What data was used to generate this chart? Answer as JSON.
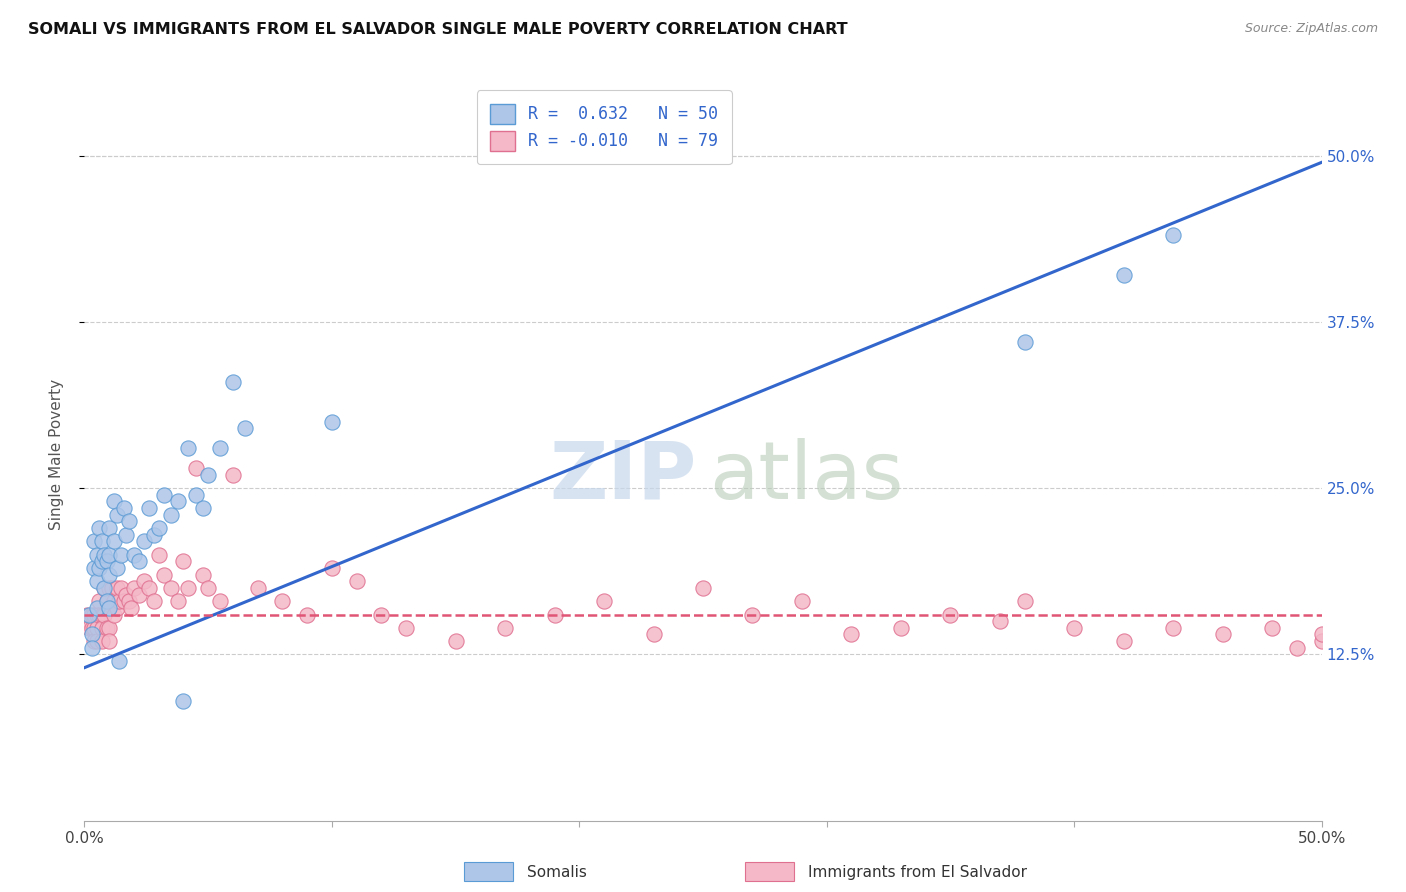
{
  "title": "SOMALI VS IMMIGRANTS FROM EL SALVADOR SINGLE MALE POVERTY CORRELATION CHART",
  "source": "Source: ZipAtlas.com",
  "ylabel": "Single Male Poverty",
  "yticks_labels": [
    "12.5%",
    "25.0%",
    "37.5%",
    "50.0%"
  ],
  "ytick_vals": [
    0.125,
    0.25,
    0.375,
    0.5
  ],
  "xrange": [
    0.0,
    0.5
  ],
  "yrange": [
    0.0,
    0.55
  ],
  "somali_color": "#aec6e8",
  "somali_edge": "#5b9bd5",
  "salvador_color": "#f4b8c8",
  "salvador_edge": "#e07090",
  "line_somali": "#3366cc",
  "line_salvador": "#e05575",
  "legend_label1": "R =  0.632   N = 50",
  "legend_label2": "R = -0.010   N = 79",
  "legend_bottom1": "Somalis",
  "legend_bottom2": "Immigrants from El Salvador",
  "somali_line_start_y": 0.115,
  "somali_line_end_y": 0.495,
  "salvador_line_start_y": 0.155,
  "salvador_line_end_y": 0.155,
  "somali_x": [
    0.002,
    0.003,
    0.003,
    0.004,
    0.004,
    0.005,
    0.005,
    0.005,
    0.006,
    0.006,
    0.007,
    0.007,
    0.008,
    0.008,
    0.009,
    0.009,
    0.01,
    0.01,
    0.01,
    0.01,
    0.012,
    0.012,
    0.013,
    0.013,
    0.014,
    0.015,
    0.016,
    0.017,
    0.018,
    0.02,
    0.022,
    0.024,
    0.026,
    0.028,
    0.03,
    0.032,
    0.035,
    0.038,
    0.04,
    0.042,
    0.045,
    0.048,
    0.05,
    0.055,
    0.06,
    0.065,
    0.1,
    0.38,
    0.42,
    0.44
  ],
  "somali_y": [
    0.155,
    0.14,
    0.13,
    0.21,
    0.19,
    0.2,
    0.18,
    0.16,
    0.22,
    0.19,
    0.21,
    0.195,
    0.2,
    0.175,
    0.195,
    0.165,
    0.22,
    0.2,
    0.185,
    0.16,
    0.24,
    0.21,
    0.23,
    0.19,
    0.12,
    0.2,
    0.235,
    0.215,
    0.225,
    0.2,
    0.195,
    0.21,
    0.235,
    0.215,
    0.22,
    0.245,
    0.23,
    0.24,
    0.09,
    0.28,
    0.245,
    0.235,
    0.26,
    0.28,
    0.33,
    0.295,
    0.3,
    0.36,
    0.41,
    0.44
  ],
  "salvador_x": [
    0.001,
    0.002,
    0.002,
    0.003,
    0.003,
    0.004,
    0.004,
    0.004,
    0.005,
    0.005,
    0.005,
    0.006,
    0.006,
    0.007,
    0.007,
    0.007,
    0.008,
    0.008,
    0.009,
    0.009,
    0.01,
    0.01,
    0.01,
    0.01,
    0.011,
    0.012,
    0.012,
    0.013,
    0.013,
    0.014,
    0.015,
    0.016,
    0.017,
    0.018,
    0.019,
    0.02,
    0.022,
    0.024,
    0.026,
    0.028,
    0.03,
    0.032,
    0.035,
    0.038,
    0.04,
    0.042,
    0.045,
    0.048,
    0.05,
    0.055,
    0.06,
    0.07,
    0.08,
    0.09,
    0.1,
    0.11,
    0.12,
    0.13,
    0.15,
    0.17,
    0.19,
    0.21,
    0.23,
    0.25,
    0.27,
    0.29,
    0.31,
    0.33,
    0.35,
    0.37,
    0.38,
    0.4,
    0.42,
    0.44,
    0.46,
    0.48,
    0.49,
    0.5,
    0.5
  ],
  "salvador_y": [
    0.155,
    0.15,
    0.145,
    0.155,
    0.145,
    0.155,
    0.145,
    0.135,
    0.155,
    0.145,
    0.135,
    0.165,
    0.155,
    0.155,
    0.145,
    0.135,
    0.175,
    0.155,
    0.165,
    0.145,
    0.175,
    0.16,
    0.145,
    0.135,
    0.175,
    0.165,
    0.155,
    0.175,
    0.16,
    0.165,
    0.175,
    0.165,
    0.17,
    0.165,
    0.16,
    0.175,
    0.17,
    0.18,
    0.175,
    0.165,
    0.2,
    0.185,
    0.175,
    0.165,
    0.195,
    0.175,
    0.265,
    0.185,
    0.175,
    0.165,
    0.26,
    0.175,
    0.165,
    0.155,
    0.19,
    0.18,
    0.155,
    0.145,
    0.135,
    0.145,
    0.155,
    0.165,
    0.14,
    0.175,
    0.155,
    0.165,
    0.14,
    0.145,
    0.155,
    0.15,
    0.165,
    0.145,
    0.135,
    0.145,
    0.14,
    0.145,
    0.13,
    0.135,
    0.14
  ]
}
